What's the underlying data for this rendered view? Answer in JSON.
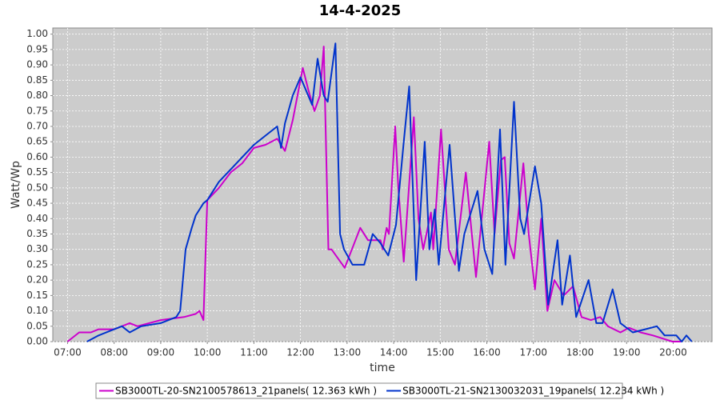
{
  "chart_data": {
    "type": "line",
    "title": "14-4-2025",
    "x_label": "time",
    "y_label": "Watt/Wp",
    "xlim": [
      "06:41",
      "20:50"
    ],
    "xticks": [
      "07:00",
      "08:00",
      "09:00",
      "10:00",
      "11:00",
      "12:00",
      "13:00",
      "14:00",
      "15:00",
      "16:00",
      "17:00",
      "18:00",
      "19:00",
      "20:00"
    ],
    "ylim": [
      0,
      1.02
    ],
    "yticks": [
      {
        "value": 0,
        "label": "0.00"
      },
      0.05,
      {
        "value": 0.1,
        "label": "0.10"
      },
      0.15,
      {
        "value": 0.2,
        "label": "0.20"
      },
      0.25,
      {
        "value": 0.3,
        "label": "0.30"
      },
      0.35,
      {
        "value": 0.4,
        "label": "0.40"
      },
      0.45,
      {
        "value": 0.5,
        "label": "0.50"
      },
      0.55,
      {
        "value": 0.6,
        "label": "0.60"
      },
      0.65,
      {
        "value": 0.7,
        "label": "0.70"
      },
      0.75,
      {
        "value": 0.8,
        "label": "0.80"
      },
      0.85,
      {
        "value": 0.9,
        "label": "0.90"
      },
      0.95,
      {
        "value": 1,
        "label": "1.00"
      }
    ],
    "grid": true,
    "series": [
      {
        "name": "SB3000TL-20-SN2100578613_21panels( 12.363 kWh )",
        "color": "#cc00cc",
        "x": [
          "07:00",
          "07:15",
          "07:30",
          "07:40",
          "08:00",
          "08:10",
          "08:20",
          "08:30",
          "09:00",
          "09:30",
          "09:45",
          "09:50",
          "09:55",
          "10:00",
          "10:15",
          "10:30",
          "10:45",
          "11:00",
          "11:15",
          "11:30",
          "11:40",
          "11:50",
          "12:03",
          "12:10",
          "12:18",
          "12:25",
          "12:30",
          "12:36",
          "12:40",
          "12:57",
          "13:17",
          "13:27",
          "13:43",
          "13:46",
          "13:51",
          "13:54",
          "14:02",
          "14:06",
          "14:13",
          "14:26",
          "14:32",
          "14:38",
          "14:48",
          "14:51",
          "15:01",
          "15:11",
          "15:19",
          "15:33",
          "15:46",
          "16:03",
          "16:10",
          "16:18",
          "16:23",
          "16:29",
          "16:35",
          "16:47",
          "16:54",
          "17:02",
          "17:10",
          "17:18",
          "17:27",
          "17:39",
          "17:51",
          "18:02",
          "18:14",
          "18:26",
          "18:36",
          "18:52",
          "19:03",
          "19:18",
          "19:34",
          "19:59",
          "20:10"
        ],
        "values": [
          0,
          0.03,
          0.03,
          0.04,
          0.04,
          0.05,
          0.06,
          0.05,
          0.07,
          0.08,
          0.09,
          0.1,
          0.07,
          0.46,
          0.5,
          0.55,
          0.58,
          0.63,
          0.64,
          0.66,
          0.62,
          0.72,
          0.89,
          0.82,
          0.75,
          0.8,
          0.96,
          0.3,
          0.3,
          0.24,
          0.37,
          0.33,
          0.33,
          0.3,
          0.37,
          0.35,
          0.7,
          0.5,
          0.26,
          0.73,
          0.4,
          0.3,
          0.42,
          0.3,
          0.69,
          0.3,
          0.25,
          0.55,
          0.21,
          0.65,
          0.35,
          0.59,
          0.6,
          0.32,
          0.27,
          0.58,
          0.35,
          0.17,
          0.4,
          0.1,
          0.2,
          0.15,
          0.18,
          0.08,
          0.07,
          0.08,
          0.05,
          0.03,
          0.045,
          0.03,
          0.02,
          0,
          0
        ]
      },
      {
        "name": "SB3000TL-21-SN2130032031_19panels( 12.234 kWh )",
        "color": "#0033cc",
        "x": [
          "07:25",
          "07:40",
          "08:00",
          "08:10",
          "08:20",
          "08:35",
          "09:00",
          "09:20",
          "09:25",
          "09:32",
          "09:40",
          "09:45",
          "09:55",
          "10:00",
          "10:15",
          "10:30",
          "10:45",
          "11:00",
          "11:15",
          "11:30",
          "11:35",
          "11:40",
          "11:50",
          "12:00",
          "12:10",
          "12:15",
          "12:22",
          "12:30",
          "12:35",
          "12:45",
          "12:51",
          "12:56",
          "13:07",
          "13:22",
          "13:33",
          "13:43",
          "13:53",
          "14:03",
          "14:13",
          "14:20",
          "14:29",
          "14:40",
          "14:46",
          "14:53",
          "14:58",
          "15:12",
          "15:24",
          "15:31",
          "15:48",
          "15:57",
          "16:07",
          "16:17",
          "16:24",
          "16:35",
          "16:43",
          "16:48",
          "17:02",
          "17:10",
          "17:19",
          "17:31",
          "17:37",
          "17:47",
          "17:55",
          "18:11",
          "18:21",
          "18:29",
          "18:42",
          "18:52",
          "19:08",
          "19:24",
          "19:39",
          "19:49",
          "20:04",
          "20:11",
          "20:17",
          "20:24"
        ],
        "values": [
          0,
          0.02,
          0.04,
          0.05,
          0.03,
          0.05,
          0.06,
          0.08,
          0.1,
          0.3,
          0.37,
          0.41,
          0.45,
          0.46,
          0.52,
          0.56,
          0.6,
          0.64,
          0.67,
          0.7,
          0.63,
          0.71,
          0.8,
          0.86,
          0.8,
          0.77,
          0.92,
          0.8,
          0.78,
          0.97,
          0.35,
          0.3,
          0.25,
          0.25,
          0.35,
          0.32,
          0.28,
          0.38,
          0.65,
          0.83,
          0.2,
          0.65,
          0.3,
          0.43,
          0.25,
          0.64,
          0.23,
          0.35,
          0.49,
          0.3,
          0.22,
          0.69,
          0.25,
          0.78,
          0.4,
          0.35,
          0.57,
          0.45,
          0.12,
          0.33,
          0.12,
          0.28,
          0.08,
          0.2,
          0.06,
          0.06,
          0.17,
          0.06,
          0.03,
          0.04,
          0.05,
          0.02,
          0.02,
          0,
          0.02,
          0
        ]
      }
    ],
    "legend_position": "bottom"
  }
}
